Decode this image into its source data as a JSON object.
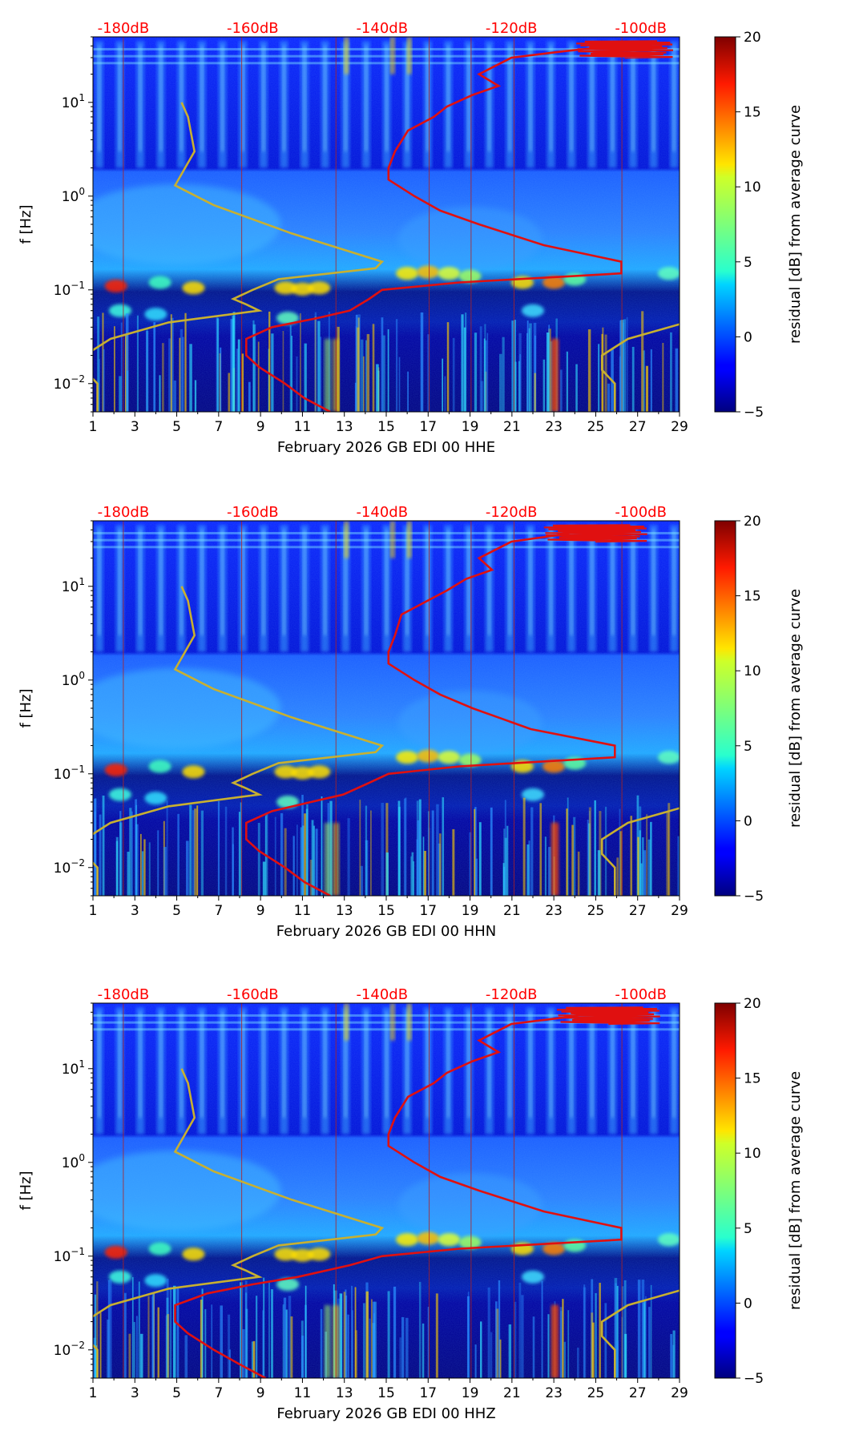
{
  "figure": {
    "background": "#ffffff"
  },
  "colors": {
    "noise_model": "#c8b030",
    "median_curve": "#e01010",
    "db_label": "#ff0000",
    "vline": "#b02020"
  },
  "chart_data": [
    {
      "type": "heatmap",
      "channel": "HHE",
      "xlabel": "February 2026 GB EDI 00 HHE",
      "ylabel": "f [Hz]",
      "x_ticks": [
        "1",
        "3",
        "5",
        "7",
        "9",
        "11",
        "13",
        "15",
        "17",
        "19",
        "21",
        "23",
        "25",
        "27",
        "29"
      ],
      "x_range": [
        1,
        29
      ],
      "y_range_hz": [
        0.005,
        50
      ],
      "y_ticks": [
        {
          "value": 0.01,
          "base": "10",
          "exp": "−2"
        },
        {
          "value": 0.1,
          "base": "10",
          "exp": "−1"
        },
        {
          "value": 1,
          "base": "10",
          "exp": "0"
        },
        {
          "value": 10,
          "base": "10",
          "exp": "1"
        }
      ],
      "db_labels": [
        "-180dB",
        "-160dB",
        "-140dB",
        "-120dB",
        "-100dB"
      ],
      "db_values": [
        -180,
        -160,
        -140,
        -120,
        -100
      ],
      "colorbar": {
        "label": "residual [dB] from average curve",
        "range": [
          -5,
          20
        ],
        "ticks": [
          "20",
          "15",
          "10",
          "5",
          "0",
          "−5"
        ]
      },
      "noise_model_db_vs_hz": [
        [
          10,
          -171
        ],
        [
          7,
          -170
        ],
        [
          3,
          -169
        ],
        [
          1.3,
          -172
        ],
        [
          0.8,
          -166
        ],
        [
          0.4,
          -154
        ],
        [
          0.2,
          -140
        ],
        [
          0.17,
          -141
        ],
        [
          0.13,
          -156
        ],
        [
          0.1,
          -160
        ],
        [
          0.08,
          -163
        ],
        [
          0.07,
          -161
        ],
        [
          0.06,
          -159
        ],
        [
          0.045,
          -173
        ],
        [
          0.03,
          -182
        ],
        [
          0.02,
          -186
        ],
        [
          0.014,
          -186
        ],
        [
          0.01,
          -184
        ],
        [
          0.006,
          -184
        ],
        [
          0.005,
          -184
        ]
      ],
      "median_curve_db_vs_hz": [
        [
          40,
          -104
        ],
        [
          35,
          -112
        ],
        [
          30,
          -120
        ],
        [
          20,
          -125
        ],
        [
          15,
          -122
        ],
        [
          12,
          -126
        ],
        [
          9,
          -130
        ],
        [
          7,
          -132
        ],
        [
          5,
          -136
        ],
        [
          3,
          -138
        ],
        [
          2,
          -139
        ],
        [
          1.5,
          -139
        ],
        [
          1,
          -135
        ],
        [
          0.7,
          -131
        ],
        [
          0.5,
          -125
        ],
        [
          0.3,
          -115
        ],
        [
          0.2,
          -103
        ],
        [
          0.15,
          -103
        ],
        [
          0.12,
          -128
        ],
        [
          0.1,
          -140
        ],
        [
          0.08,
          -142
        ],
        [
          0.06,
          -145
        ],
        [
          0.05,
          -150
        ],
        [
          0.04,
          -157
        ],
        [
          0.03,
          -161
        ],
        [
          0.02,
          -161
        ],
        [
          0.015,
          -159
        ],
        [
          0.01,
          -155
        ],
        [
          0.007,
          -152
        ],
        [
          0.005,
          -148
        ]
      ],
      "median_curve_top_excursion_db": [
        -110,
        -95
      ]
    },
    {
      "type": "heatmap",
      "channel": "HHN",
      "xlabel": "February 2026 GB EDI 00 HHN",
      "ylabel": "f [Hz]",
      "x_ticks": [
        "1",
        "3",
        "5",
        "7",
        "9",
        "11",
        "13",
        "15",
        "17",
        "19",
        "21",
        "23",
        "25",
        "27",
        "29"
      ],
      "x_range": [
        1,
        29
      ],
      "y_range_hz": [
        0.005,
        50
      ],
      "y_ticks": [
        {
          "value": 0.01,
          "base": "10",
          "exp": "−2"
        },
        {
          "value": 0.1,
          "base": "10",
          "exp": "−1"
        },
        {
          "value": 1,
          "base": "10",
          "exp": "0"
        },
        {
          "value": 10,
          "base": "10",
          "exp": "1"
        }
      ],
      "db_labels": [
        "-180dB",
        "-160dB",
        "-140dB",
        "-120dB",
        "-100dB"
      ],
      "db_values": [
        -180,
        -160,
        -140,
        -120,
        -100
      ],
      "colorbar": {
        "label": "residual [dB] from average curve",
        "range": [
          -5,
          20
        ],
        "ticks": [
          "20",
          "15",
          "10",
          "5",
          "0",
          "−5"
        ]
      },
      "noise_model_db_vs_hz": [
        [
          10,
          -171
        ],
        [
          7,
          -170
        ],
        [
          3,
          -169
        ],
        [
          1.3,
          -172
        ],
        [
          0.8,
          -166
        ],
        [
          0.4,
          -154
        ],
        [
          0.2,
          -140
        ],
        [
          0.17,
          -141
        ],
        [
          0.13,
          -156
        ],
        [
          0.1,
          -160
        ],
        [
          0.08,
          -163
        ],
        [
          0.07,
          -161
        ],
        [
          0.06,
          -159
        ],
        [
          0.045,
          -173
        ],
        [
          0.03,
          -182
        ],
        [
          0.02,
          -186
        ],
        [
          0.014,
          -186
        ],
        [
          0.01,
          -184
        ],
        [
          0.006,
          -184
        ],
        [
          0.005,
          -184
        ]
      ],
      "median_curve_db_vs_hz": [
        [
          40,
          -108
        ],
        [
          35,
          -113
        ],
        [
          30,
          -120
        ],
        [
          20,
          -125
        ],
        [
          15,
          -123
        ],
        [
          12,
          -127
        ],
        [
          9,
          -130
        ],
        [
          7,
          -133
        ],
        [
          5,
          -137
        ],
        [
          3,
          -138
        ],
        [
          2,
          -139
        ],
        [
          1.5,
          -139
        ],
        [
          1,
          -135
        ],
        [
          0.7,
          -131
        ],
        [
          0.5,
          -126
        ],
        [
          0.3,
          -117
        ],
        [
          0.2,
          -104
        ],
        [
          0.15,
          -104
        ],
        [
          0.12,
          -128
        ],
        [
          0.1,
          -139
        ],
        [
          0.08,
          -142
        ],
        [
          0.06,
          -146
        ],
        [
          0.05,
          -151
        ],
        [
          0.04,
          -157
        ],
        [
          0.03,
          -161
        ],
        [
          0.02,
          -161
        ],
        [
          0.015,
          -159
        ],
        [
          0.01,
          -155
        ],
        [
          0.007,
          -152
        ],
        [
          0.005,
          -148
        ]
      ],
      "median_curve_top_excursion_db": [
        -115,
        -99
      ]
    },
    {
      "type": "heatmap",
      "channel": "HHZ",
      "xlabel": "February 2026 GB EDI 00 HHZ",
      "ylabel": "f [Hz]",
      "x_ticks": [
        "1",
        "3",
        "5",
        "7",
        "9",
        "11",
        "13",
        "15",
        "17",
        "19",
        "21",
        "23",
        "25",
        "27",
        "29"
      ],
      "x_range": [
        1,
        29
      ],
      "y_range_hz": [
        0.005,
        50
      ],
      "y_ticks": [
        {
          "value": 0.01,
          "base": "10",
          "exp": "−2"
        },
        {
          "value": 0.1,
          "base": "10",
          "exp": "−1"
        },
        {
          "value": 1,
          "base": "10",
          "exp": "0"
        },
        {
          "value": 10,
          "base": "10",
          "exp": "1"
        }
      ],
      "db_labels": [
        "-180dB",
        "-160dB",
        "-140dB",
        "-120dB",
        "-100dB"
      ],
      "db_values": [
        -180,
        -160,
        -140,
        -120,
        -100
      ],
      "colorbar": {
        "label": "residual [dB] from average curve",
        "range": [
          -5,
          20
        ],
        "ticks": [
          "20",
          "15",
          "10",
          "5",
          "0",
          "−5"
        ]
      },
      "noise_model_db_vs_hz": [
        [
          10,
          -171
        ],
        [
          7,
          -170
        ],
        [
          3,
          -169
        ],
        [
          1.3,
          -172
        ],
        [
          0.8,
          -166
        ],
        [
          0.4,
          -154
        ],
        [
          0.2,
          -140
        ],
        [
          0.17,
          -141
        ],
        [
          0.13,
          -156
        ],
        [
          0.1,
          -160
        ],
        [
          0.08,
          -163
        ],
        [
          0.07,
          -161
        ],
        [
          0.06,
          -159
        ],
        [
          0.045,
          -173
        ],
        [
          0.03,
          -182
        ],
        [
          0.02,
          -186
        ],
        [
          0.014,
          -186
        ],
        [
          0.01,
          -184
        ],
        [
          0.006,
          -184
        ],
        [
          0.005,
          -184
        ]
      ],
      "median_curve_db_vs_hz": [
        [
          40,
          -106
        ],
        [
          35,
          -112
        ],
        [
          30,
          -120
        ],
        [
          20,
          -125
        ],
        [
          15,
          -122
        ],
        [
          12,
          -126
        ],
        [
          9,
          -130
        ],
        [
          7,
          -132
        ],
        [
          5,
          -136
        ],
        [
          3,
          -138
        ],
        [
          2,
          -139
        ],
        [
          1.5,
          -139
        ],
        [
          1,
          -135
        ],
        [
          0.7,
          -131
        ],
        [
          0.5,
          -125
        ],
        [
          0.3,
          -115
        ],
        [
          0.2,
          -103
        ],
        [
          0.15,
          -103
        ],
        [
          0.12,
          -128
        ],
        [
          0.1,
          -140
        ],
        [
          0.08,
          -145
        ],
        [
          0.06,
          -153
        ],
        [
          0.05,
          -160
        ],
        [
          0.04,
          -167
        ],
        [
          0.03,
          -172
        ],
        [
          0.02,
          -172
        ],
        [
          0.015,
          -170
        ],
        [
          0.01,
          -166
        ],
        [
          0.007,
          -162
        ],
        [
          0.005,
          -158
        ]
      ],
      "median_curve_top_excursion_db": [
        -113,
        -97
      ]
    }
  ]
}
